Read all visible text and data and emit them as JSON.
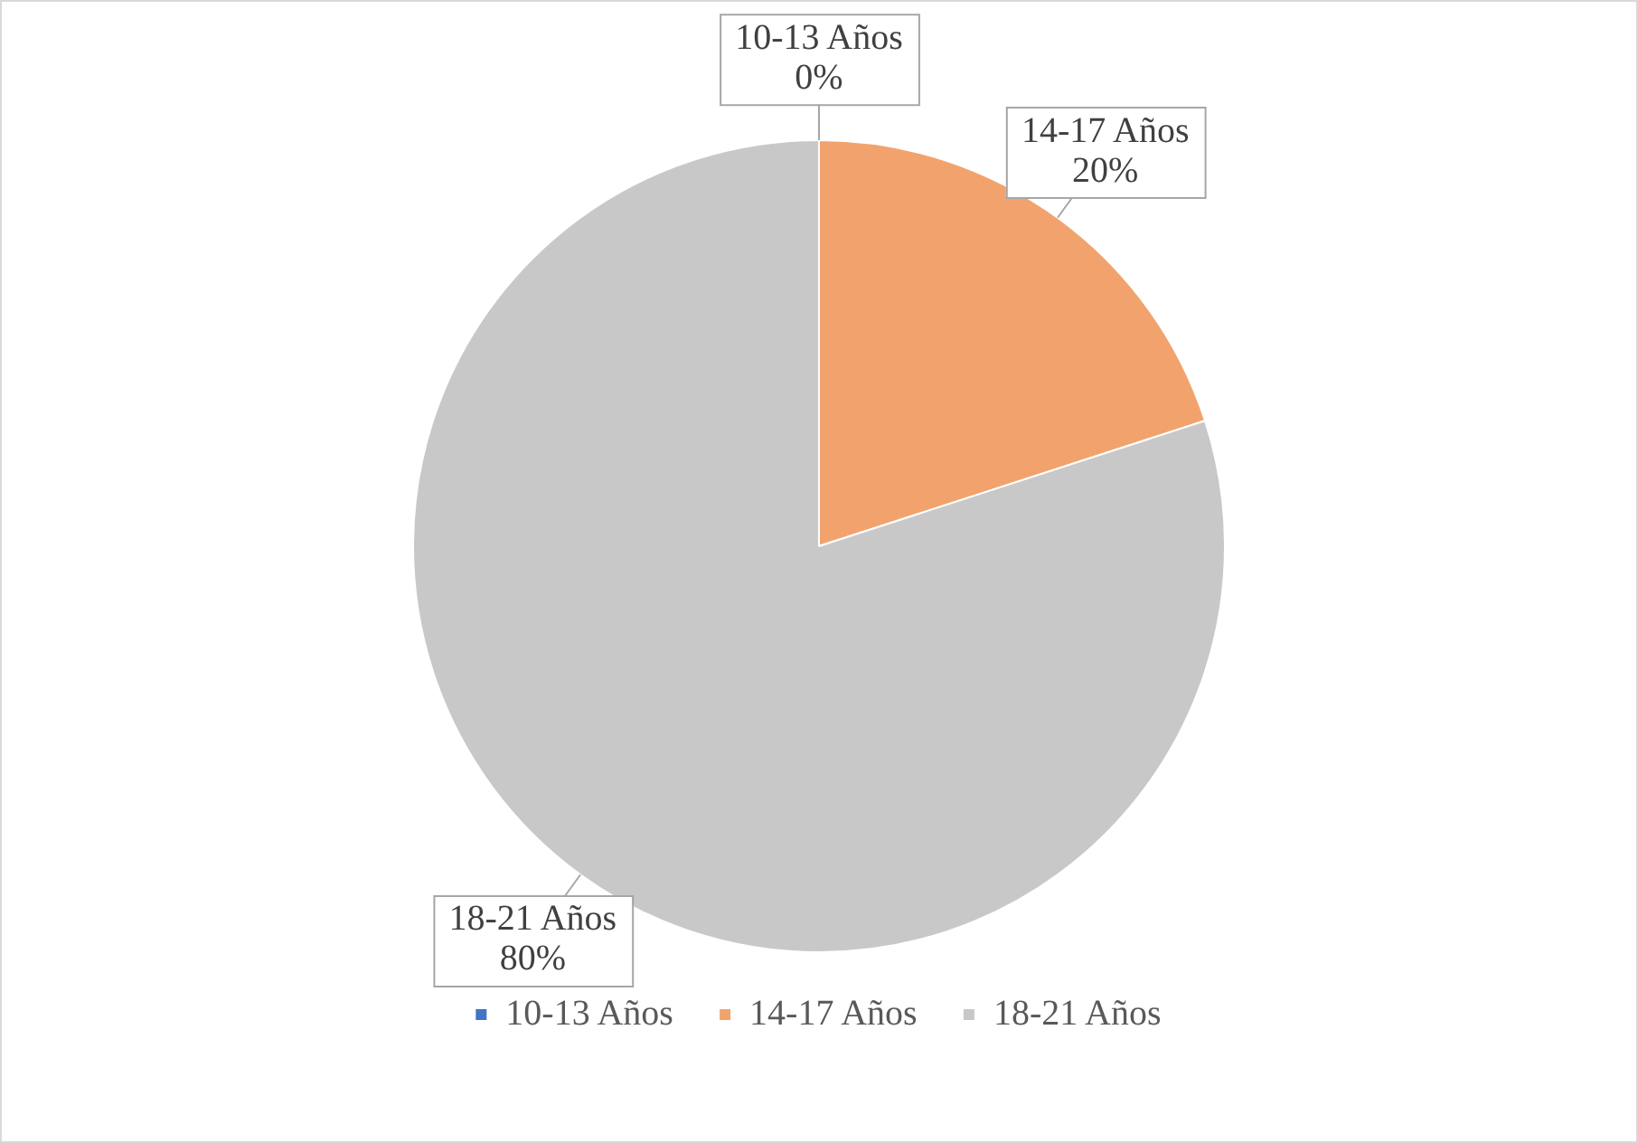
{
  "chart_data": {
    "type": "pie",
    "categories": [
      "10-13 Años",
      "14-17 Años",
      "18-21 Años"
    ],
    "values": [
      0,
      20,
      80
    ],
    "colors": [
      "#4472c4",
      "#f2a36d",
      "#c8c8c8"
    ],
    "value_labels": [
      "0%",
      "20%",
      "80%"
    ],
    "legend": "bottom"
  }
}
